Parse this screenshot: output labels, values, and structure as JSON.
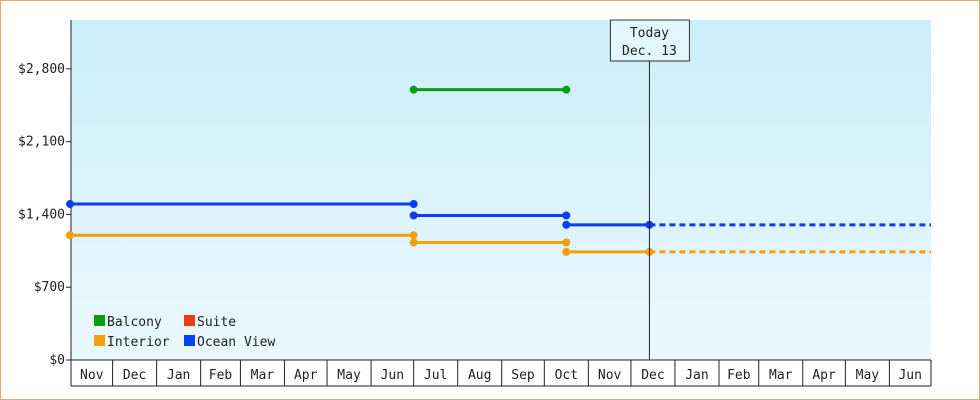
{
  "chart_data": {
    "type": "line",
    "step": true,
    "y_ticks": [
      {
        "value": 0,
        "label": "$0"
      },
      {
        "value": 700,
        "label": "$700"
      },
      {
        "value": 1400,
        "label": "$1,400"
      },
      {
        "value": 2100,
        "label": "$2,100"
      },
      {
        "value": 2800,
        "label": "$2,800"
      }
    ],
    "ylim": [
      0,
      3270
    ],
    "months": [
      "Nov",
      "Dec",
      "Jan",
      "Feb",
      "Mar",
      "Apr",
      "May",
      "Jun",
      "Jul",
      "Aug",
      "Sep",
      "Oct",
      "Nov",
      "Dec",
      "Jan",
      "Feb",
      "Mar",
      "Apr",
      "May",
      "Jun"
    ],
    "month_widths": [
      30,
      31,
      31,
      28,
      31,
      30,
      31,
      30,
      31,
      31,
      30,
      31,
      30,
      31,
      31,
      28,
      31,
      30,
      31,
      30
    ],
    "today": {
      "line1": "Today",
      "line2": "Dec. 13",
      "x": 13.42
    },
    "series": [
      {
        "name": "Balcony",
        "color": "#0c9c10",
        "segments": [
          {
            "x": [
              8.0,
              11.5
            ],
            "y": 2600
          }
        ],
        "projection": null
      },
      {
        "name": "Suite",
        "color": "#f03c10",
        "segments": [],
        "projection": null
      },
      {
        "name": "Interior",
        "color": "#f5a00a",
        "segments": [
          {
            "x": [
              0.0,
              8.0
            ],
            "y": 1200
          },
          {
            "x": [
              8.0,
              11.5
            ],
            "y": 1130
          },
          {
            "x": [
              11.5,
              13.42
            ],
            "y": 1040
          }
        ],
        "projection": {
          "x": [
            13.42,
            20.0
          ],
          "y": 1040
        }
      },
      {
        "name": "Ocean View",
        "color": "#0a3cf0",
        "segments": [
          {
            "x": [
              0.0,
              8.0
            ],
            "y": 1500
          },
          {
            "x": [
              8.0,
              11.5
            ],
            "y": 1390
          },
          {
            "x": [
              11.5,
              13.42
            ],
            "y": 1300
          }
        ],
        "projection": {
          "x": [
            13.42,
            20.0
          ],
          "y": 1300
        }
      }
    ],
    "legend": {
      "placement": "bottom-left",
      "rows": [
        [
          "Balcony",
          "Suite"
        ],
        [
          "Interior",
          "Ocean View"
        ]
      ]
    },
    "background_gradient": [
      "#cbeefa",
      "#eaf8fd"
    ]
  }
}
